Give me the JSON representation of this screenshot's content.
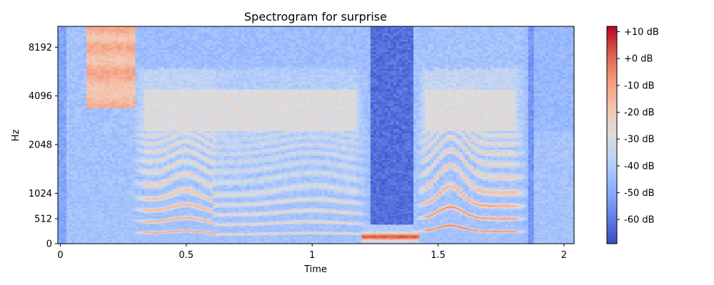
{
  "chart_data": {
    "type": "heatmap",
    "title": "Spectrogram for surprise",
    "xlabel": "Time",
    "ylabel": "Hz",
    "x_ticks": [
      0,
      0.5,
      1,
      1.5,
      2
    ],
    "x_tick_labels": [
      "0",
      "0.5",
      "1",
      "1.5",
      "2"
    ],
    "xlim": [
      -0.01,
      2.04
    ],
    "y_scale": "symlog",
    "y_ticks": [
      0,
      512,
      1024,
      2048,
      4096,
      8192
    ],
    "y_tick_labels": [
      "0",
      "512",
      "1024",
      "2048",
      "4096",
      "8192"
    ],
    "ylim": [
      0,
      11025
    ],
    "colormap": "coolwarm",
    "colorbar": {
      "range": [
        -69,
        12
      ],
      "ticks": [
        10,
        0,
        -10,
        -20,
        -30,
        -40,
        -50,
        -60
      ],
      "tick_labels": [
        "+10 dB",
        "+0 dB",
        "-10 dB",
        "-20 dB",
        "-30 dB",
        "-40 dB",
        "-50 dB",
        "-60 dB"
      ]
    },
    "grid": false
  }
}
